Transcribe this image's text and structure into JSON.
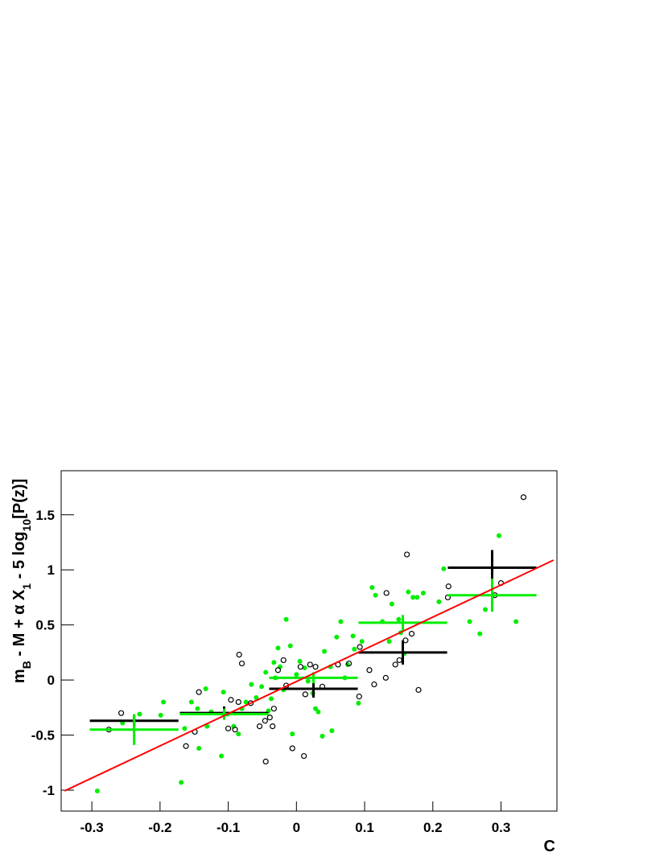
{
  "chart_data": {
    "type": "scatter",
    "x_label": "C",
    "y_label": [
      "m",
      "B",
      " - M + α X",
      "1",
      " - 5 log",
      "10",
      "[P(z)]"
    ],
    "xlim": [
      -0.345,
      0.382
    ],
    "ylim": [
      -1.19,
      1.9
    ],
    "xticks": [
      -0.3,
      -0.2,
      -0.1,
      0,
      0.1,
      0.2,
      0.3
    ],
    "yticks": [
      -1,
      -0.5,
      0,
      0.5,
      1,
      1.5
    ],
    "series": [
      {
        "marker": "filled",
        "color": "#00ee00",
        "x": [
          -0.292,
          -0.255,
          -0.23,
          -0.195,
          -0.199,
          -0.164,
          -0.169,
          -0.154,
          -0.145,
          -0.143,
          -0.131,
          -0.133,
          -0.125,
          -0.11,
          -0.107,
          -0.101,
          -0.092,
          -0.085,
          -0.08,
          -0.074,
          -0.066,
          -0.059,
          -0.051,
          -0.045,
          -0.041,
          -0.037,
          -0.033,
          -0.031,
          -0.027,
          -0.024,
          -0.019,
          -0.015,
          -0.009,
          -0.006,
          0,
          0.005,
          0.012,
          0.017,
          0.024,
          0.028,
          0.032,
          0.038,
          0.041,
          0.05,
          0.052,
          0.059,
          0.065,
          0.071,
          0.075,
          0.083,
          0.085,
          0.091,
          0.096,
          0.111,
          0.116,
          0.126,
          0.136,
          0.14,
          0.15,
          0.153,
          0.158,
          0.164,
          0.171,
          0.177,
          0.186,
          0.209,
          0.216,
          0.254,
          0.269,
          0.277,
          0.297,
          0.322
        ],
        "values": [
          -1.007,
          -0.39,
          -0.31,
          -0.2,
          -0.32,
          -0.44,
          -0.93,
          -0.2,
          -0.26,
          -0.62,
          -0.42,
          -0.08,
          -0.29,
          -0.69,
          -0.11,
          -0.31,
          -0.42,
          -0.49,
          -0.26,
          -0.2,
          -0.04,
          -0.16,
          -0.06,
          0.07,
          -0.28,
          -0.17,
          0.16,
          0.02,
          0.29,
          0.12,
          -0.09,
          0.55,
          0.31,
          -0.49,
          0.05,
          0.17,
          0.11,
          -0.01,
          -0.12,
          -0.26,
          -0.29,
          -0.51,
          0.26,
          0.12,
          -0.46,
          0.39,
          0.53,
          0.02,
          0.14,
          0.4,
          0.28,
          -0.21,
          0.35,
          0.84,
          0.77,
          0.53,
          0.35,
          0.69,
          0.55,
          0.43,
          0.24,
          0.8,
          0.75,
          0.75,
          0.79,
          0.71,
          1.01,
          0.53,
          0.42,
          0.64,
          1.31,
          0.53
        ]
      },
      {
        "marker": "open",
        "color": "#000000",
        "x": [
          -0.257,
          -0.275,
          -0.162,
          -0.143,
          -0.149,
          -0.1,
          -0.096,
          -0.09,
          -0.084,
          -0.08,
          -0.085,
          -0.067,
          -0.054,
          -0.046,
          -0.045,
          -0.039,
          -0.035,
          -0.033,
          -0.027,
          -0.019,
          -0.015,
          -0.006,
          0.006,
          0.011,
          0.013,
          0.02,
          0.028,
          0.038,
          0.061,
          0.077,
          0.092,
          0.093,
          0.107,
          0.114,
          0.132,
          0.131,
          0.145,
          0.151,
          0.162,
          0.16,
          0.169,
          0.179,
          0.222,
          0.223,
          0.291,
          0.3,
          0.333
        ],
        "values": [
          -0.3,
          -0.45,
          -0.6,
          -0.11,
          -0.47,
          -0.44,
          -0.18,
          -0.45,
          0.23,
          0.15,
          -0.2,
          -0.21,
          -0.42,
          -0.37,
          -0.74,
          -0.34,
          -0.42,
          -0.26,
          0.09,
          0.18,
          -0.05,
          -0.62,
          0.12,
          -0.69,
          -0.13,
          0.14,
          0.12,
          -0.06,
          0.14,
          0.15,
          -0.15,
          0.3,
          0.09,
          -0.04,
          0.79,
          0.02,
          0.14,
          0.18,
          1.14,
          0.36,
          0.42,
          -0.09,
          0.75,
          0.85,
          0.77,
          0.88,
          1.66
        ]
      }
    ],
    "binned": [
      {
        "color": "#000000",
        "x": [
          -0.238,
          -0.106,
          0.025,
          0.156,
          0.287
        ],
        "values": [
          -0.37,
          -0.3,
          -0.08,
          0.25,
          1.02
        ],
        "xerr": [
          0.065,
          0.065,
          0.065,
          0.065,
          0.065
        ],
        "yerr": [
          0.05,
          0.06,
          0.08,
          0.11,
          0.16
        ]
      },
      {
        "color": "#00ee00",
        "x": [
          -0.238,
          -0.106,
          0.025,
          0.156,
          0.287
        ],
        "values": [
          -0.45,
          -0.31,
          0.02,
          0.52,
          0.77
        ],
        "xerr": [
          0.065,
          0.065,
          0.065,
          0.065,
          0.065
        ],
        "yerr": [
          0.14,
          0.05,
          0.05,
          0.07,
          0.15
        ]
      }
    ],
    "fit": {
      "color": "#ff0000",
      "x": [
        -0.34,
        0.377
      ],
      "values": [
        -1.007,
        1.088
      ]
    }
  }
}
